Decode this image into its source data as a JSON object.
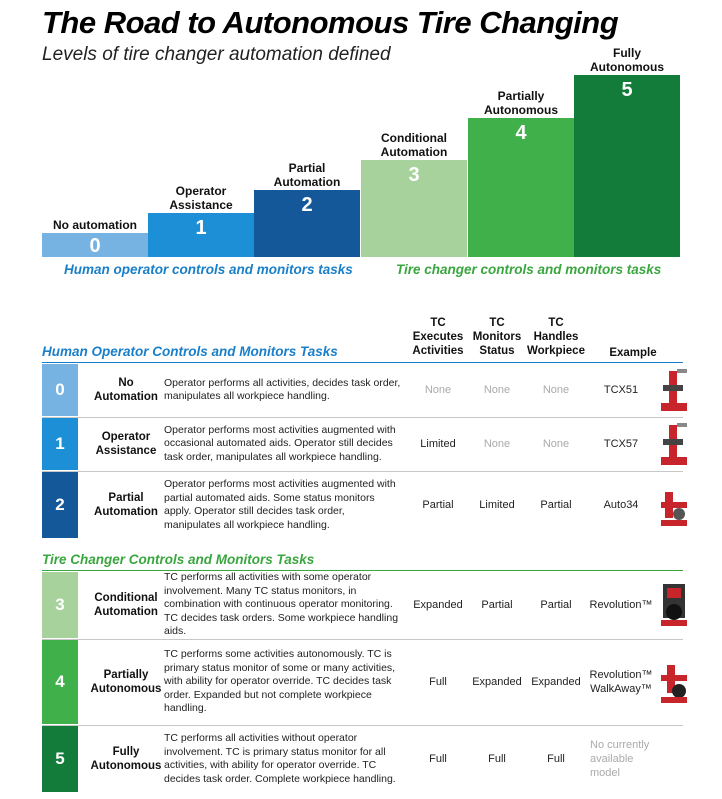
{
  "header": {
    "title": "The Road to Autonomous Tire Changing",
    "subtitle": "Levels of tire changer automation defined"
  },
  "staircase": {
    "steps": [
      {
        "num": "0",
        "label_1": "No automation",
        "label_2": "",
        "color": "#76b3e3"
      },
      {
        "num": "1",
        "label_1": "Operator",
        "label_2": "Assistance",
        "color": "#1d8fd6"
      },
      {
        "num": "2",
        "label_1": "Partial",
        "label_2": "Automation",
        "color": "#15589a"
      },
      {
        "num": "3",
        "label_1": "Conditional",
        "label_2": "Automation",
        "color": "#a8d29c"
      },
      {
        "num": "4",
        "label_1": "Partially",
        "label_2": "Autonomous",
        "color": "#3fb04a"
      },
      {
        "num": "5",
        "label_1": "Fully",
        "label_2": "Autonomous",
        "color": "#137c3a"
      }
    ],
    "caption_human": "Human operator controls and monitors tasks",
    "caption_tc": "Tire changer controls and monitors tasks",
    "caption_human_color": "#1a7fc9",
    "caption_tc_color": "#3aa63f"
  },
  "table": {
    "col_executes": {
      "l1": "TC",
      "l2": "Executes",
      "l3": "Activities"
    },
    "col_monitors": {
      "l1": "TC",
      "l2": "Monitors",
      "l3": "Status"
    },
    "col_handles": {
      "l1": "TC",
      "l2": "Handles",
      "l3": "Workpiece"
    },
    "col_example": "Example",
    "section_human": "Human Operator Controls and Monitors Tasks",
    "section_tc": "Tire Changer Controls and Monitors Tasks",
    "rows": [
      {
        "level": "0",
        "name_1": "No",
        "name_2": "Automation",
        "desc": "Operator performs all activities, decides task order, manipulates all workpiece handling.",
        "executes": "None",
        "monitors": "None",
        "handles": "None",
        "example": "TCX51",
        "example_2": "",
        "color": "#76b3e3"
      },
      {
        "level": "1",
        "name_1": "Operator",
        "name_2": "Assistance",
        "desc": "Operator performs most activities augmented with occasional automated aids. Operator still decides task order, manipulates all workpiece handling.",
        "executes": "Limited",
        "monitors": "None",
        "handles": "None",
        "example": "TCX57",
        "example_2": "",
        "color": "#1d8fd6"
      },
      {
        "level": "2",
        "name_1": "Partial",
        "name_2": "Automation",
        "desc": "Operator performs most activities augmented with partial automated aids. Some status monitors apply. Operator still decides task order, manipulates all workpiece handling.",
        "executes": "Partial",
        "monitors": "Limited",
        "handles": "Partial",
        "example": "Auto34",
        "example_2": "",
        "color": "#15589a"
      },
      {
        "level": "3",
        "name_1": "Conditional",
        "name_2": "Automation",
        "desc": "TC performs all activities with some operator involvement. Many TC status monitors, in combination with continuous operator monitoring. TC decides task orders. Some workpiece handling aids.",
        "executes": "Expanded",
        "monitors": "Partial",
        "handles": "Partial",
        "example": "Revolution™",
        "example_2": "",
        "color": "#a8d29c"
      },
      {
        "level": "4",
        "name_1": "Partially",
        "name_2": "Autonomous",
        "desc": "TC performs some activities autonomously. TC is primary status monitor of some or many activities, with ability for operator override. TC decides task order. Expanded but not complete workpiece handling.",
        "executes": "Full",
        "monitors": "Expanded",
        "handles": "Expanded",
        "example": "Revolution™",
        "example_2": "WalkAway™",
        "color": "#3fb04a"
      },
      {
        "level": "5",
        "name_1": "Fully",
        "name_2": "Autonomous",
        "desc": "TC performs all activities without operator involvement. TC is primary status monitor for all activities, with ability for operator override. TC decides task order. Complete workpiece handling.",
        "executes": "Full",
        "monitors": "Full",
        "handles": "Full",
        "example": "No currently",
        "example_2": "available model",
        "color": "#137c3a"
      }
    ]
  }
}
